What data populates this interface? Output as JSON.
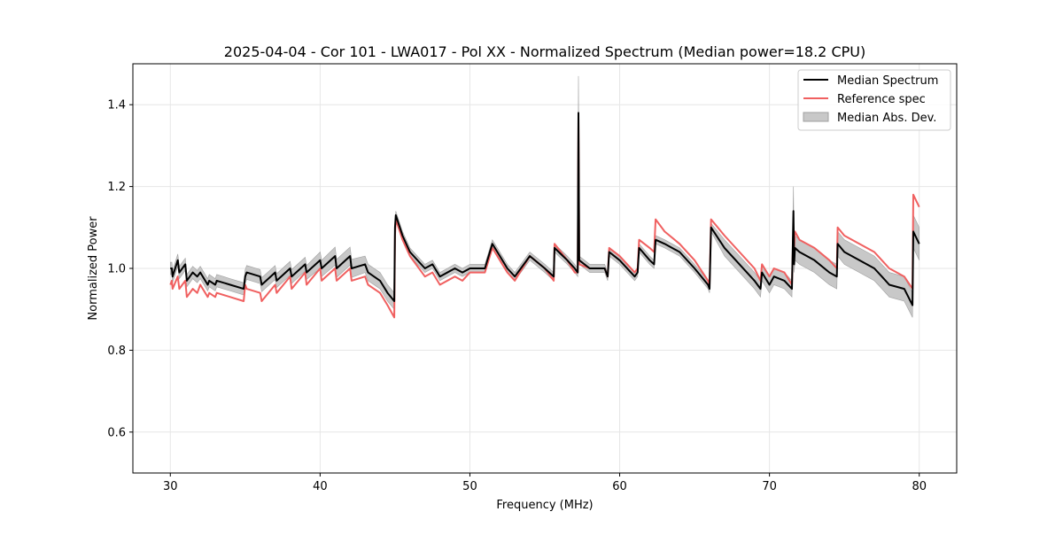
{
  "chart_data": {
    "type": "line",
    "title": "2025-04-04 - Cor 101 - LWA017 - Pol XX - Normalized Spectrum (Median power=18.2 CPU)",
    "xlabel": "Frequency (MHz)",
    "ylabel": "Normalized Power",
    "xlim": [
      27.5,
      82.5
    ],
    "ylim": [
      0.5,
      1.5
    ],
    "xticks": [
      30,
      40,
      50,
      60,
      70,
      80
    ],
    "xtick_labels": [
      "30",
      "40",
      "50",
      "60",
      "70",
      "80"
    ],
    "yticks": [
      0.6,
      0.8,
      1.0,
      1.2,
      1.4
    ],
    "ytick_labels": [
      "0.6",
      "0.8",
      "1.0",
      "1.2",
      "1.4"
    ],
    "grid": true,
    "legend_position": "top-right",
    "legend": [
      "Median Spectrum",
      "Reference spec",
      "Median Abs. Dev."
    ],
    "colors": {
      "median": "#000000",
      "reference": "#f06060",
      "mad_fill": "#c8c8c8",
      "mad_edge": "#a0a0a0",
      "grid": "#e6e6e6"
    },
    "series": [
      {
        "name": "Median Spectrum",
        "x": [
          30.0,
          30.1,
          30.15,
          30.5,
          30.6,
          31.0,
          31.1,
          31.5,
          31.8,
          32.0,
          32.5,
          32.6,
          33.0,
          33.1,
          34.0,
          34.9,
          35.0,
          35.1,
          36.0,
          36.1,
          37.0,
          37.1,
          38.0,
          38.1,
          39.0,
          39.1,
          40.0,
          40.1,
          41.0,
          41.1,
          42.0,
          42.1,
          43.0,
          43.2,
          44.0,
          44.5,
          44.95,
          45.0,
          45.05,
          45.5,
          46.0,
          47.0,
          47.5,
          48.0,
          49.0,
          49.5,
          50.0,
          51.0,
          51.5,
          52.0,
          52.5,
          53.0,
          54.0,
          55.0,
          55.6,
          55.65,
          56.5,
          57.0,
          57.2,
          57.25,
          57.3,
          58.0,
          59.0,
          59.2,
          59.3,
          60.0,
          61.0,
          61.2,
          61.3,
          62.0,
          62.3,
          62.4,
          63.0,
          64.0,
          65.0,
          65.9,
          66.0,
          66.1,
          67.0,
          68.0,
          69.0,
          69.4,
          69.5,
          70.0,
          70.3,
          71.0,
          71.5,
          71.6,
          71.65,
          71.7,
          72.0,
          73.0,
          74.0,
          74.5,
          74.55,
          75.0,
          76.0,
          77.0,
          77.5,
          78.0,
          79.0,
          79.55,
          79.6,
          80.0
        ],
        "values": [
          1.0,
          1.0,
          0.98,
          1.02,
          0.99,
          1.01,
          0.97,
          0.99,
          0.98,
          0.99,
          0.96,
          0.97,
          0.96,
          0.97,
          0.96,
          0.95,
          0.98,
          0.99,
          0.98,
          0.96,
          0.99,
          0.97,
          1.0,
          0.98,
          1.01,
          0.99,
          1.02,
          1.0,
          1.03,
          1.0,
          1.03,
          1.0,
          1.01,
          0.99,
          0.97,
          0.94,
          0.92,
          1.1,
          1.13,
          1.08,
          1.04,
          1.0,
          1.01,
          0.98,
          1.0,
          0.99,
          1.0,
          1.0,
          1.06,
          1.03,
          1.0,
          0.98,
          1.03,
          1.0,
          0.98,
          1.05,
          1.02,
          1.0,
          0.99,
          1.38,
          1.02,
          1.0,
          1.0,
          0.98,
          1.04,
          1.02,
          0.98,
          0.99,
          1.05,
          1.02,
          1.01,
          1.07,
          1.06,
          1.04,
          1.0,
          0.96,
          0.95,
          1.1,
          1.05,
          1.01,
          0.97,
          0.95,
          0.99,
          0.96,
          0.98,
          0.97,
          0.95,
          1.14,
          1.01,
          1.05,
          1.04,
          1.02,
          0.99,
          0.98,
          1.06,
          1.04,
          1.02,
          1.0,
          0.98,
          0.96,
          0.95,
          0.91,
          1.09,
          1.06
        ]
      },
      {
        "name": "Reference spec",
        "x": [
          30.0,
          30.1,
          30.15,
          30.5,
          30.6,
          31.0,
          31.1,
          31.5,
          31.8,
          32.0,
          32.5,
          32.6,
          33.0,
          33.1,
          34.0,
          34.9,
          35.0,
          35.1,
          36.0,
          36.1,
          37.0,
          37.1,
          38.0,
          38.1,
          39.0,
          39.1,
          40.0,
          40.1,
          41.0,
          41.1,
          42.0,
          42.1,
          43.0,
          43.2,
          44.0,
          44.5,
          44.95,
          45.0,
          45.05,
          45.5,
          46.0,
          47.0,
          47.5,
          48.0,
          49.0,
          49.5,
          50.0,
          51.0,
          51.5,
          52.0,
          52.5,
          53.0,
          54.0,
          55.0,
          55.6,
          55.65,
          56.5,
          57.0,
          57.2,
          57.25,
          57.3,
          58.0,
          59.0,
          59.2,
          59.3,
          60.0,
          61.0,
          61.2,
          61.3,
          62.0,
          62.3,
          62.4,
          63.0,
          64.0,
          65.0,
          65.9,
          66.0,
          66.1,
          67.0,
          68.0,
          69.0,
          69.4,
          69.5,
          70.0,
          70.3,
          71.0,
          71.5,
          71.6,
          71.65,
          71.7,
          72.0,
          73.0,
          74.0,
          74.5,
          74.55,
          75.0,
          76.0,
          77.0,
          77.5,
          78.0,
          79.0,
          79.55,
          79.6,
          80.0
        ],
        "values": [
          0.96,
          0.97,
          0.95,
          0.98,
          0.95,
          0.97,
          0.93,
          0.95,
          0.94,
          0.96,
          0.93,
          0.94,
          0.93,
          0.94,
          0.93,
          0.92,
          0.96,
          0.95,
          0.94,
          0.92,
          0.96,
          0.94,
          0.98,
          0.95,
          0.99,
          0.96,
          1.0,
          0.97,
          1.0,
          0.97,
          1.0,
          0.97,
          0.98,
          0.96,
          0.94,
          0.91,
          0.88,
          1.08,
          1.12,
          1.07,
          1.03,
          0.98,
          0.99,
          0.96,
          0.98,
          0.97,
          0.99,
          0.99,
          1.05,
          1.02,
          0.99,
          0.97,
          1.03,
          1.0,
          0.97,
          1.06,
          1.02,
          0.99,
          0.99,
          1.37,
          1.01,
          1.0,
          1.0,
          0.98,
          1.05,
          1.03,
          0.99,
          1.0,
          1.07,
          1.05,
          1.04,
          1.12,
          1.09,
          1.06,
          1.02,
          0.97,
          0.96,
          1.12,
          1.08,
          1.04,
          1.0,
          0.97,
          1.01,
          0.98,
          1.0,
          0.99,
          0.96,
          1.1,
          1.05,
          1.09,
          1.07,
          1.05,
          1.02,
          1.0,
          1.1,
          1.08,
          1.06,
          1.04,
          1.02,
          1.0,
          0.98,
          0.95,
          1.18,
          1.15
        ]
      },
      {
        "name": "Median Abs. Dev.",
        "x": [
          30.0,
          30.1,
          30.15,
          30.5,
          30.6,
          31.0,
          31.1,
          31.5,
          31.8,
          32.0,
          32.5,
          32.6,
          33.0,
          33.1,
          34.0,
          34.9,
          35.0,
          35.1,
          36.0,
          36.1,
          37.0,
          37.1,
          38.0,
          38.1,
          39.0,
          39.1,
          40.0,
          40.1,
          41.0,
          41.1,
          42.0,
          42.1,
          43.0,
          43.2,
          44.0,
          44.5,
          44.95,
          45.0,
          45.05,
          45.5,
          46.0,
          47.0,
          47.5,
          48.0,
          49.0,
          49.5,
          50.0,
          51.0,
          51.5,
          52.0,
          52.5,
          53.0,
          54.0,
          55.0,
          55.6,
          55.65,
          56.5,
          57.0,
          57.2,
          57.25,
          57.3,
          58.0,
          59.0,
          59.2,
          59.3,
          60.0,
          61.0,
          61.2,
          61.3,
          62.0,
          62.3,
          62.4,
          63.0,
          64.0,
          65.0,
          65.9,
          66.0,
          66.1,
          67.0,
          68.0,
          69.0,
          69.4,
          69.5,
          70.0,
          70.3,
          71.0,
          71.5,
          71.6,
          71.65,
          71.7,
          72.0,
          73.0,
          74.0,
          74.5,
          74.55,
          75.0,
          76.0,
          77.0,
          77.5,
          78.0,
          79.0,
          79.55,
          79.6,
          80.0
        ],
        "lower": [
          0.985,
          0.985,
          0.965,
          1.005,
          0.975,
          0.995,
          0.955,
          0.975,
          0.965,
          0.975,
          0.945,
          0.955,
          0.945,
          0.955,
          0.945,
          0.935,
          0.963,
          0.973,
          0.963,
          0.943,
          0.973,
          0.953,
          0.983,
          0.963,
          0.993,
          0.973,
          1.0,
          0.98,
          1.008,
          0.978,
          1.008,
          0.978,
          0.99,
          0.97,
          0.95,
          0.92,
          0.9,
          1.09,
          1.12,
          1.07,
          1.03,
          0.99,
          1.0,
          0.97,
          0.99,
          0.98,
          0.99,
          0.99,
          1.05,
          1.02,
          0.99,
          0.97,
          1.02,
          0.99,
          0.97,
          1.04,
          1.01,
          0.99,
          0.98,
          1.36,
          1.01,
          0.99,
          0.99,
          0.97,
          1.03,
          1.01,
          0.97,
          0.98,
          1.04,
          1.01,
          1.0,
          1.06,
          1.05,
          1.03,
          0.99,
          0.95,
          0.94,
          1.09,
          1.03,
          0.99,
          0.95,
          0.93,
          0.97,
          0.94,
          0.96,
          0.95,
          0.93,
          1.12,
          0.99,
          1.02,
          1.01,
          0.99,
          0.96,
          0.95,
          1.03,
          1.01,
          0.99,
          0.97,
          0.95,
          0.93,
          0.92,
          0.88,
          1.05,
          1.02
        ],
        "upper": [
          1.015,
          1.015,
          0.995,
          1.035,
          1.005,
          1.025,
          0.985,
          1.005,
          0.995,
          1.005,
          0.975,
          0.985,
          0.975,
          0.985,
          0.975,
          0.965,
          0.997,
          1.007,
          0.997,
          0.977,
          1.007,
          0.987,
          1.017,
          0.997,
          1.027,
          1.007,
          1.04,
          1.02,
          1.052,
          1.022,
          1.052,
          1.022,
          1.03,
          1.01,
          0.99,
          0.96,
          0.94,
          1.11,
          1.14,
          1.09,
          1.05,
          1.01,
          1.02,
          0.99,
          1.01,
          1.0,
          1.01,
          1.01,
          1.07,
          1.04,
          1.01,
          0.99,
          1.04,
          1.01,
          0.99,
          1.06,
          1.03,
          1.01,
          1.0,
          1.47,
          1.03,
          1.01,
          1.01,
          0.99,
          1.05,
          1.03,
          0.99,
          1.0,
          1.06,
          1.03,
          1.02,
          1.08,
          1.07,
          1.05,
          1.01,
          0.97,
          0.96,
          1.11,
          1.07,
          1.03,
          0.99,
          0.97,
          1.01,
          0.98,
          1.0,
          0.99,
          0.97,
          1.2,
          1.03,
          1.08,
          1.07,
          1.05,
          1.02,
          1.01,
          1.09,
          1.07,
          1.05,
          1.03,
          1.01,
          0.99,
          0.98,
          0.94,
          1.13,
          1.1
        ]
      }
    ]
  }
}
